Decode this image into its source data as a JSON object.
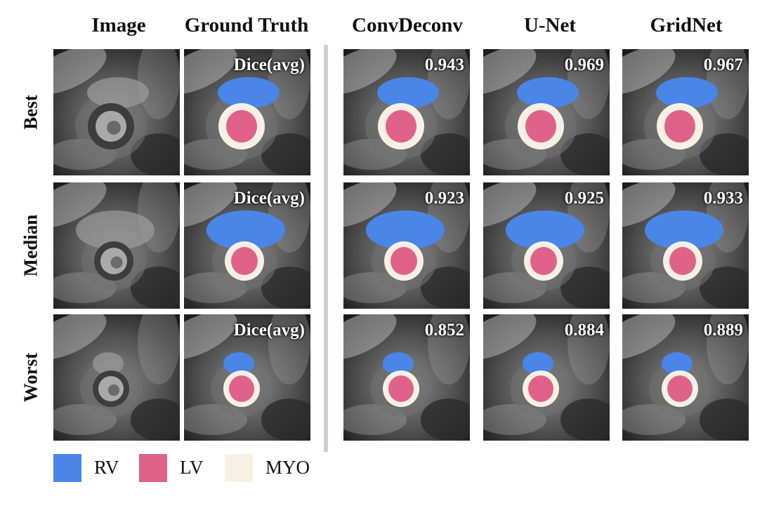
{
  "columns": [
    "Image",
    "Ground Truth",
    "ConvDeconv",
    "U-Net",
    "GridNet"
  ],
  "rows": [
    "Best",
    "Median",
    "Worst"
  ],
  "dice_label": "Dice(avg)",
  "dice_scores": {
    "best": [
      "0.943",
      "0.969",
      "0.967"
    ],
    "median": [
      "0.923",
      "0.925",
      "0.933"
    ],
    "worst": [
      "0.852",
      "0.884",
      "0.889"
    ]
  },
  "legend": [
    {
      "label": "RV",
      "color": "#4a86e8"
    },
    {
      "label": "LV",
      "color": "#e0628a"
    },
    {
      "label": "MYO",
      "color": "#f7f1e3"
    }
  ]
}
